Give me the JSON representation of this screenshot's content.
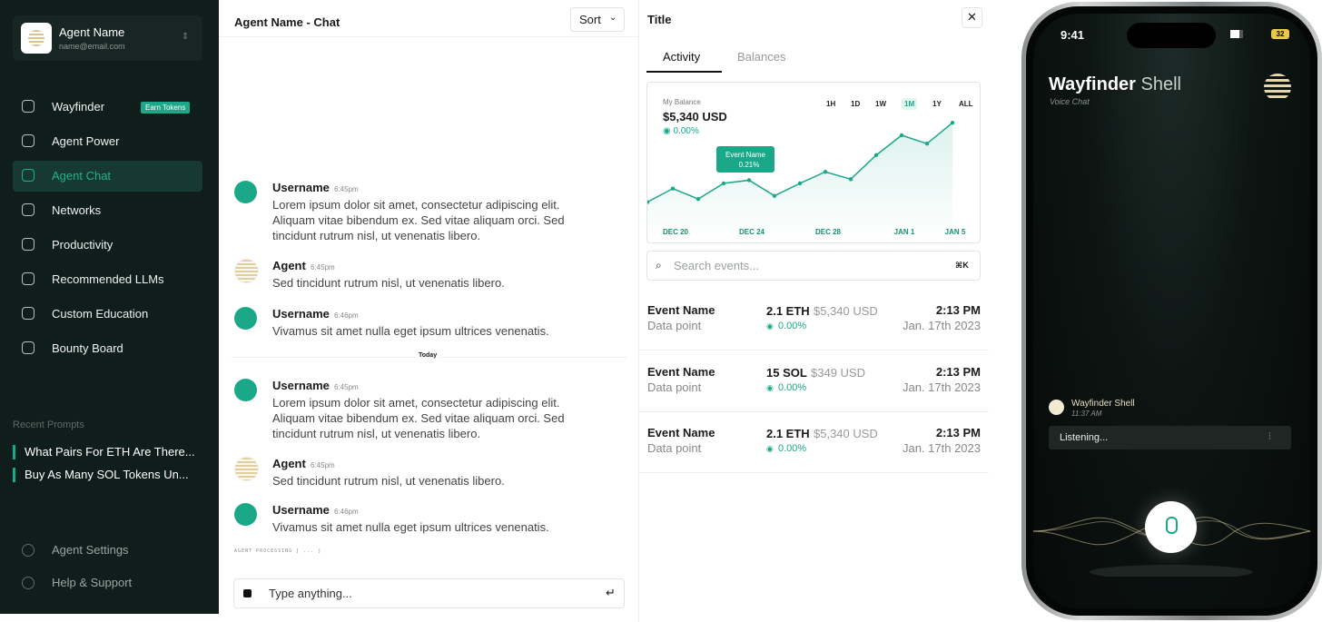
{
  "sidebar": {
    "user": {
      "name": "Agent Name",
      "email": "name@email.com"
    },
    "nav": [
      "Wayfinder",
      "Agent Power",
      "Agent Chat",
      "Networks",
      "Productivity",
      "Recommended LLMs",
      "Custom Education",
      "Bounty Board"
    ],
    "badge": "Earn Tokens",
    "active": "Agent Chat",
    "recent_label": "Recent Prompts",
    "recent": [
      "What Pairs For ETH Are There...",
      "Buy As Many SOL Tokens Un..."
    ],
    "footer": [
      "Agent Settings",
      "Help & Support"
    ]
  },
  "chat": {
    "title": "Agent Name - Chat",
    "sort": "Sort",
    "messages": [
      {
        "name": "Username",
        "time": "6:45pm",
        "text": "Lorem ipsum dolor sit amet, consectetur adipiscing elit. Aliquam vitae bibendum ex. Sed vitae aliquam orci. Sed tincidunt rutrum nisl, ut venenatis libero."
      },
      {
        "name": "Agent",
        "time": "6:45pm",
        "text": "Sed tincidunt rutrum nisl, ut venenatis libero."
      },
      {
        "name": "Username",
        "time": "6:46pm",
        "text": "Vivamus sit amet nulla eget ipsum ultrices venenatis."
      },
      {
        "name": "Username",
        "time": "6:45pm",
        "text": "Lorem ipsum dolor sit amet, consectetur adipiscing elit. Aliquam vitae bibendum ex. Sed vitae aliquam orci. Sed tincidunt rutrum nisl, ut venenatis libero."
      },
      {
        "name": "Agent",
        "time": "6:45pm",
        "text": "Sed tincidunt rutrum nisl, ut venenatis libero."
      },
      {
        "name": "Username",
        "time": "6:46pm",
        "text": "Vivamus sit amet nulla eget ipsum ultrices venenatis."
      }
    ],
    "divider": "Today",
    "processing": "AGENT PROCESSING [ ... ]",
    "placeholder": "Type anything..."
  },
  "panel": {
    "title": "Title",
    "tabs": [
      "Activity",
      "Balances"
    ],
    "balance_label": "My Balance",
    "balance": "$5,340 USD",
    "balance_change": "0.00%",
    "ranges": [
      "1H",
      "1D",
      "1W",
      "1M",
      "1Y",
      "ALL"
    ],
    "active_range": "1M",
    "search": "Search events...",
    "shortcut": "⌘K",
    "events": [
      {
        "name": "Event Name",
        "sub": "Data point",
        "amount": "2.1 ETH",
        "usd": "$5,340 USD",
        "change": "0.00%",
        "time": "2:13 PM",
        "date": "Jan. 17th 2023"
      },
      {
        "name": "Event Name",
        "sub": "Data point",
        "amount": "15 SOL",
        "usd": "$349 USD",
        "change": "0.00%",
        "time": "2:13 PM",
        "date": "Jan. 17th 2023"
      },
      {
        "name": "Event Name",
        "sub": "Data point",
        "amount": "2.1 ETH",
        "usd": "$5,340 USD",
        "change": "0.00%",
        "time": "2:13 PM",
        "date": "Jan. 17th 2023"
      }
    ]
  },
  "chart_data": {
    "type": "line",
    "categories": [
      null,
      "DEC 20",
      null,
      null,
      "DEC 24",
      null,
      null,
      "DEC 28",
      null,
      null,
      "JAN 1",
      null,
      "JAN 5"
    ],
    "values": [
      16,
      29,
      19,
      34,
      37,
      22,
      34,
      45,
      38,
      61,
      80,
      72,
      92
    ],
    "color": "#1aa889",
    "ylim": [
      0,
      100
    ],
    "annotation": {
      "text": "Event Name",
      "change": "0.21%"
    }
  },
  "phone": {
    "time": "9:41",
    "battery": "32",
    "title_bold": "Wayfinder",
    "title_light": "Shell",
    "subtitle": "Voice Chat",
    "message": {
      "name": "Wayfinder Shell",
      "time": "11:37 AM"
    },
    "status": "Listening..."
  }
}
